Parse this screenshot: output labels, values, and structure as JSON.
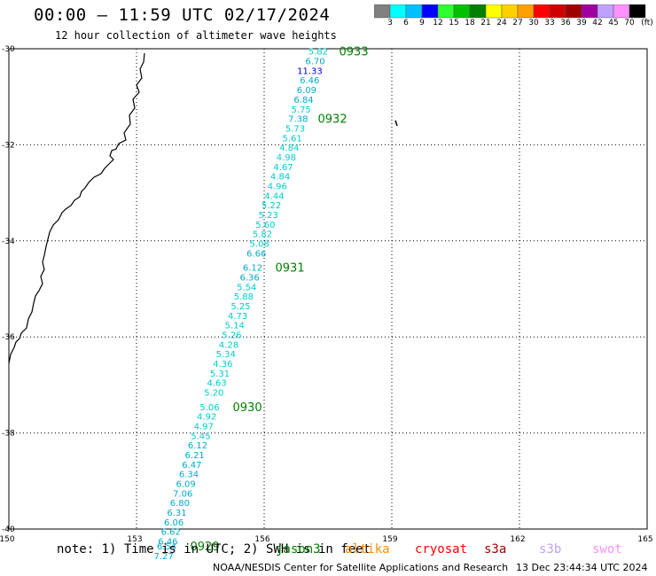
{
  "title": "00:00 – 11:59 UTC 02/17/2024",
  "subtitle": "12 hour collection of altimeter wave heights",
  "colorbar": {
    "unit": "(ft)",
    "labels": [
      "3",
      "6",
      "9",
      "12",
      "15",
      "18",
      "21",
      "24",
      "27",
      "30",
      "33",
      "36",
      "39",
      "42",
      "45",
      "70"
    ],
    "colors": [
      "#808080",
      "#00ffff",
      "#00c0ff",
      "#0000ff",
      "#30ff30",
      "#00c000",
      "#008000",
      "#ffff00",
      "#ffd000",
      "#ffa000",
      "#ff0000",
      "#d00000",
      "#a00000",
      "#a000a0",
      "#c0a0ff",
      "#ff90ff",
      "#000000"
    ]
  },
  "axes": {
    "lon_ticks": [
      "150",
      "153",
      "156",
      "159",
      "162",
      "165"
    ],
    "lat_ticks": [
      "-30",
      "-32",
      "-34",
      "-36",
      "-38",
      "-40"
    ]
  },
  "track": {
    "color": "#00cccc",
    "points": [
      {
        "lat": -30.05,
        "lon": 157.5,
        "v": "5.82",
        "color": "#00cccc"
      },
      {
        "lat": -30.25,
        "lon": 157.43,
        "v": "6.70",
        "color": "#00aacc"
      },
      {
        "lat": -30.45,
        "lon": 157.37,
        "v": "11.33",
        "color": "#0000cc"
      },
      {
        "lat": -30.65,
        "lon": 157.3,
        "v": "6.46",
        "color": "#00aacc"
      },
      {
        "lat": -30.85,
        "lon": 157.23,
        "v": "6.09",
        "color": "#00aacc"
      },
      {
        "lat": -31.05,
        "lon": 157.16,
        "v": "6.84",
        "color": "#00aacc"
      },
      {
        "lat": -31.25,
        "lon": 157.1,
        "v": "5.75",
        "color": "#00cccc"
      },
      {
        "lat": -31.45,
        "lon": 157.03,
        "v": "7.38",
        "color": "#00aacc"
      },
      {
        "lat": -31.65,
        "lon": 156.96,
        "v": "5.73",
        "color": "#00cccc"
      },
      {
        "lat": -31.85,
        "lon": 156.89,
        "v": "5.61",
        "color": "#00cccc"
      },
      {
        "lat": -32.05,
        "lon": 156.82,
        "v": "4.84",
        "color": "#00cccc"
      },
      {
        "lat": -32.25,
        "lon": 156.75,
        "v": "4.98",
        "color": "#00cccc"
      },
      {
        "lat": -32.45,
        "lon": 156.68,
        "v": "4.67",
        "color": "#00cccc"
      },
      {
        "lat": -32.65,
        "lon": 156.61,
        "v": "4.84",
        "color": "#00cccc"
      },
      {
        "lat": -32.85,
        "lon": 156.54,
        "v": "4.96",
        "color": "#00cccc"
      },
      {
        "lat": -33.05,
        "lon": 156.47,
        "v": "4.44",
        "color": "#00cccc"
      },
      {
        "lat": -33.25,
        "lon": 156.4,
        "v": "5.22",
        "color": "#00cccc"
      },
      {
        "lat": -33.45,
        "lon": 156.33,
        "v": "5.23",
        "color": "#00cccc"
      },
      {
        "lat": -33.65,
        "lon": 156.26,
        "v": "5.60",
        "color": "#00cccc"
      },
      {
        "lat": -33.85,
        "lon": 156.19,
        "v": "5.82",
        "color": "#00cccc"
      },
      {
        "lat": -34.05,
        "lon": 156.12,
        "v": "5.08",
        "color": "#00cccc"
      },
      {
        "lat": -34.25,
        "lon": 156.05,
        "v": "6.66",
        "color": "#00aacc"
      },
      {
        "lat": -34.55,
        "lon": 155.96,
        "v": "6.12",
        "color": "#00aacc"
      },
      {
        "lat": -34.75,
        "lon": 155.89,
        "v": "6.36",
        "color": "#00aacc"
      },
      {
        "lat": -34.95,
        "lon": 155.82,
        "v": "5.54",
        "color": "#00cccc"
      },
      {
        "lat": -35.15,
        "lon": 155.75,
        "v": "5.88",
        "color": "#00cccc"
      },
      {
        "lat": -35.35,
        "lon": 155.68,
        "v": "5.25",
        "color": "#00cccc"
      },
      {
        "lat": -35.55,
        "lon": 155.61,
        "v": "4.73",
        "color": "#00cccc"
      },
      {
        "lat": -35.75,
        "lon": 155.54,
        "v": "5.14",
        "color": "#00cccc"
      },
      {
        "lat": -35.95,
        "lon": 155.47,
        "v": "5.26",
        "color": "#00cccc"
      },
      {
        "lat": -36.15,
        "lon": 155.4,
        "v": "4.28",
        "color": "#00cccc"
      },
      {
        "lat": -36.35,
        "lon": 155.33,
        "v": "5.34",
        "color": "#00cccc"
      },
      {
        "lat": -36.55,
        "lon": 155.26,
        "v": "4.36",
        "color": "#00cccc"
      },
      {
        "lat": -36.75,
        "lon": 155.19,
        "v": "5.31",
        "color": "#00cccc"
      },
      {
        "lat": -36.95,
        "lon": 155.12,
        "v": "4.63",
        "color": "#00cccc"
      },
      {
        "lat": -37.15,
        "lon": 155.05,
        "v": "5.20",
        "color": "#00cccc"
      },
      {
        "lat": -37.45,
        "lon": 154.95,
        "v": "5.06",
        "color": "#00cccc"
      },
      {
        "lat": -37.65,
        "lon": 154.88,
        "v": "4.92",
        "color": "#00cccc"
      },
      {
        "lat": -37.85,
        "lon": 154.81,
        "v": "4.97",
        "color": "#00cccc"
      },
      {
        "lat": -38.05,
        "lon": 154.74,
        "v": "5.45",
        "color": "#00cccc"
      },
      {
        "lat": -38.25,
        "lon": 154.67,
        "v": "6.12",
        "color": "#00aacc"
      },
      {
        "lat": -38.45,
        "lon": 154.6,
        "v": "6.21",
        "color": "#00aacc"
      },
      {
        "lat": -38.65,
        "lon": 154.53,
        "v": "6.47",
        "color": "#00aacc"
      },
      {
        "lat": -38.85,
        "lon": 154.46,
        "v": "6.34",
        "color": "#00aacc"
      },
      {
        "lat": -39.05,
        "lon": 154.39,
        "v": "6.09",
        "color": "#00aacc"
      },
      {
        "lat": -39.25,
        "lon": 154.32,
        "v": "7.06",
        "color": "#00aacc"
      },
      {
        "lat": -39.45,
        "lon": 154.25,
        "v": "6.80",
        "color": "#00aacc"
      },
      {
        "lat": -39.65,
        "lon": 154.18,
        "v": "6.31",
        "color": "#00aacc"
      },
      {
        "lat": -39.85,
        "lon": 154.11,
        "v": "6.06",
        "color": "#00aacc"
      },
      {
        "lat": -40.05,
        "lon": 154.04,
        "v": "6.62",
        "color": "#00aacc"
      },
      {
        "lat": -40.25,
        "lon": 153.97,
        "v": "6.46",
        "color": "#00aacc"
      },
      {
        "lat": -40.35,
        "lon": 153.94,
        "v": "6.54",
        "color": "#00aacc"
      },
      {
        "lat": -40.55,
        "lon": 153.87,
        "v": "7.27",
        "color": "#00aacc"
      }
    ]
  },
  "time_labels": [
    {
      "text": "0933",
      "lat": -30.05,
      "lon": 158.45
    },
    {
      "text": "0932",
      "lat": -31.45,
      "lon": 157.95
    },
    {
      "text": "0931",
      "lat": -34.55,
      "lon": 156.95
    },
    {
      "text": "0930",
      "lat": -37.45,
      "lon": 155.95
    },
    {
      "text": "0929",
      "lat": -40.35,
      "lon": 154.95
    }
  ],
  "note": "note: 1) Time is in UTC; 2) SWH is in feet",
  "legend": [
    {
      "name": "jason3",
      "color": "#008000"
    },
    {
      "name": "altika",
      "color": "#ff8c00"
    },
    {
      "name": "cryosat",
      "color": "#ff0000"
    },
    {
      "name": "s3a",
      "color": "#a00000"
    },
    {
      "name": "s3b",
      "color": "#c0a0ff"
    },
    {
      "name": "swot",
      "color": "#ff90ff"
    }
  ],
  "footer": {
    "credit": "NOAA/NESDIS Center for Satellite Applications and Research",
    "generated": "13 Dec 23:44:34 UTC 2024"
  }
}
